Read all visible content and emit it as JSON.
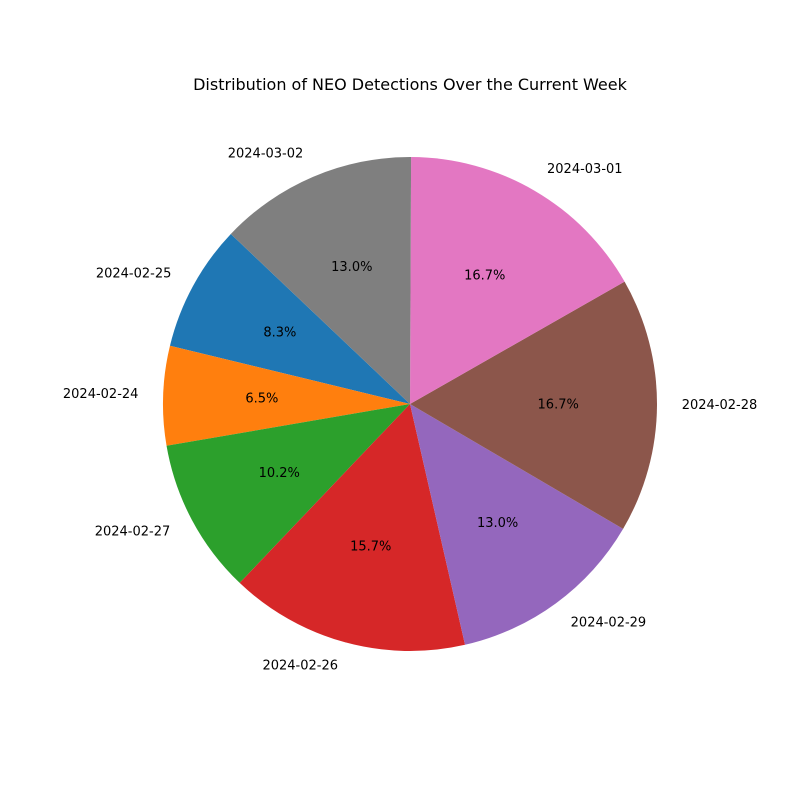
{
  "chart_data": {
    "type": "pie",
    "title": "Distribution of NEO Detections Over the Current Week",
    "slices": [
      {
        "label": "2024-02-25",
        "percent": 8.3,
        "display": "8.3%",
        "color": "#1f77b4"
      },
      {
        "label": "2024-02-24",
        "percent": 6.5,
        "display": "6.5%",
        "color": "#ff7f0e"
      },
      {
        "label": "2024-02-27",
        "percent": 10.2,
        "display": "10.2%",
        "color": "#2ca02c"
      },
      {
        "label": "2024-02-26",
        "percent": 15.7,
        "display": "15.7%",
        "color": "#d62728"
      },
      {
        "label": "2024-02-29",
        "percent": 13.0,
        "display": "13.0%",
        "color": "#9467bd"
      },
      {
        "label": "2024-02-28",
        "percent": 16.7,
        "display": "16.7%",
        "color": "#8c564b"
      },
      {
        "label": "2024-03-01",
        "percent": 16.7,
        "display": "16.7%",
        "color": "#e377c2"
      },
      {
        "label": "2024-03-02",
        "percent": 13.0,
        "display": "13.0%",
        "color": "#7f7f7f"
      }
    ]
  }
}
